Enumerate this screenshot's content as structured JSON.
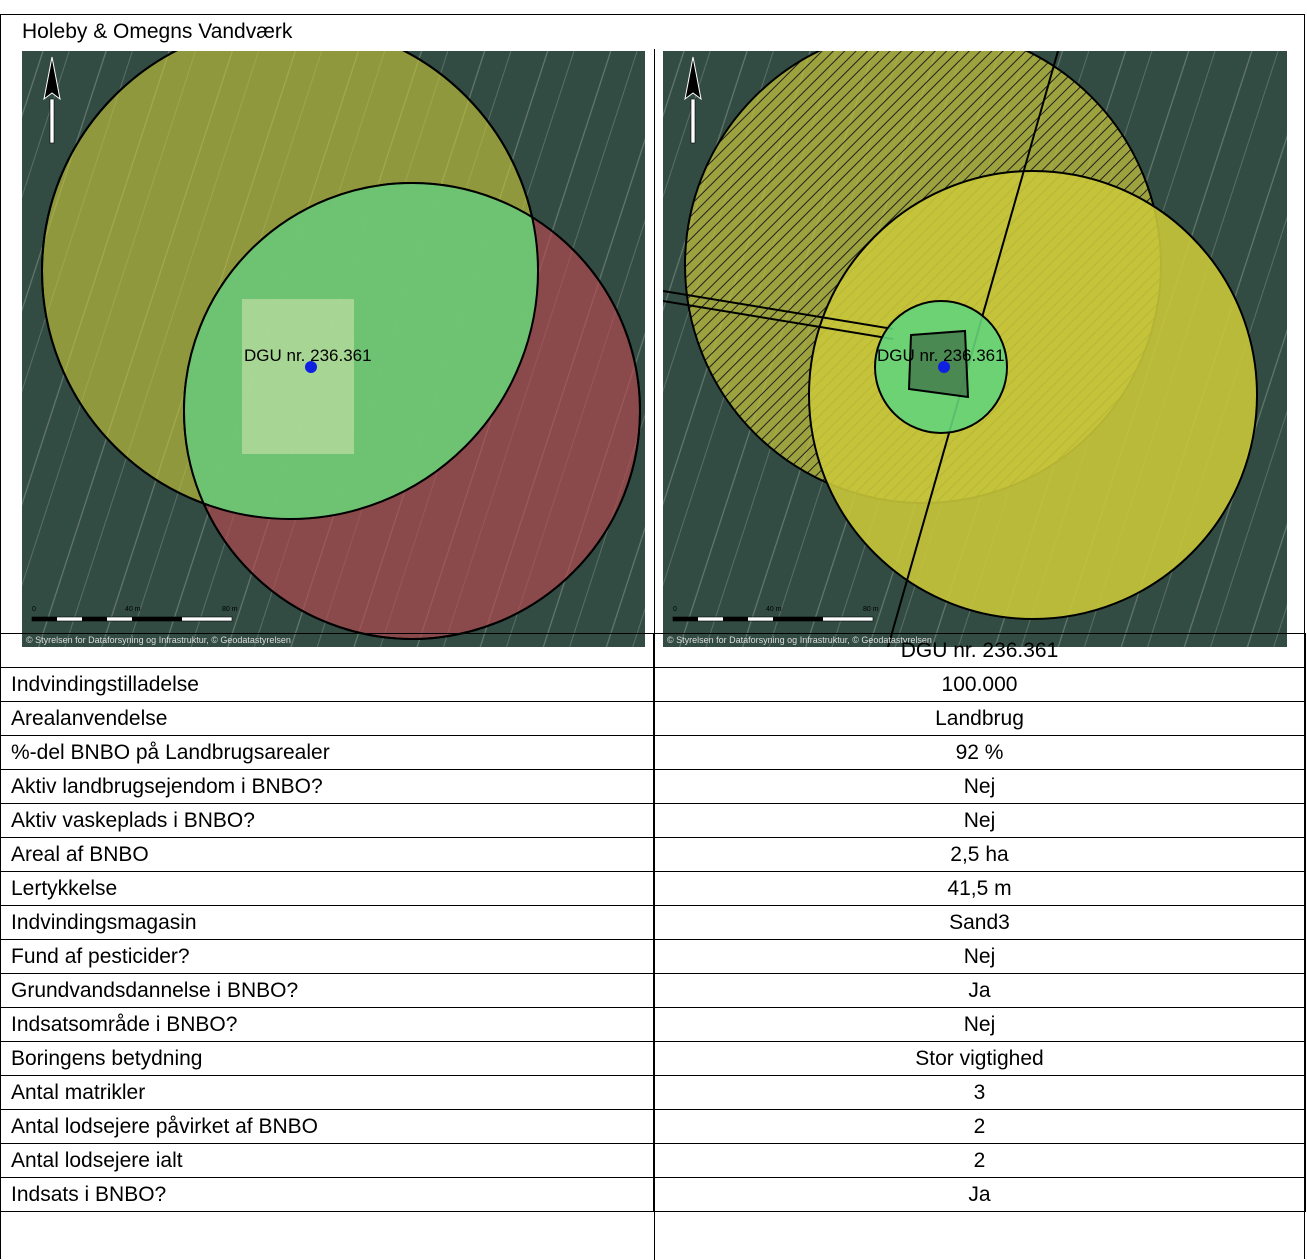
{
  "title": "Holeby & Omegns Vandværk",
  "maps": {
    "left": {
      "well_label": "DGU nr. 236.361",
      "copyright": "© Styrelsen for Dataforsyning og Infrastruktur, © Geodatastyrelsen",
      "scale_labels": [
        "0",
        "40 m",
        "80 m"
      ],
      "icons": [
        "north-arrow-icon"
      ]
    },
    "right": {
      "well_label": "DGU nr. 236.361",
      "copyright": "© Styrelsen for Dataforsyning og Infrastruktur, © Geodatastyrelsen",
      "scale_labels": [
        "0",
        "40 m",
        "80 m"
      ],
      "icons": [
        "north-arrow-icon"
      ]
    },
    "colors": {
      "yellow_zone": "#c9c63a",
      "green_zone": "#63d47a",
      "red_zone": "#c0474f",
      "well_point": "#1020e0"
    }
  },
  "table": {
    "header": {
      "label": "",
      "value": "DGU nr. 236.361"
    },
    "rows": [
      {
        "label": "Indvindingstilladelse",
        "value": "100.000"
      },
      {
        "label": "Arealanvendelse",
        "value": "Landbrug"
      },
      {
        "label": "%-del BNBO på Landbrugsarealer",
        "value": "92 %"
      },
      {
        "label": "Aktiv landbrugsejendom i BNBO?",
        "value": "Nej"
      },
      {
        "label": "Aktiv vaskeplads i BNBO?",
        "value": "Nej"
      },
      {
        "label": "Areal af BNBO",
        "value": "2,5 ha"
      },
      {
        "label": "Lertykkelse",
        "value": "41,5 m"
      },
      {
        "label": "Indvindingsmagasin",
        "value": "Sand3"
      },
      {
        "label": "Fund af pesticider?",
        "value": "Nej"
      },
      {
        "label": "Grundvandsdannelse i BNBO?",
        "value": "Ja"
      },
      {
        "label": "Indsatsområde i BNBO?",
        "value": "Nej"
      },
      {
        "label": "Boringens betydning",
        "value": "Stor vigtighed"
      },
      {
        "label": "Antal matrikler",
        "value": "3"
      },
      {
        "label": "Antal lodsejere påvirket af BNBO",
        "value": "2"
      },
      {
        "label": "Antal lodsejere ialt",
        "value": "2"
      },
      {
        "label": "Indsats i BNBO?",
        "value": "Ja"
      }
    ]
  }
}
